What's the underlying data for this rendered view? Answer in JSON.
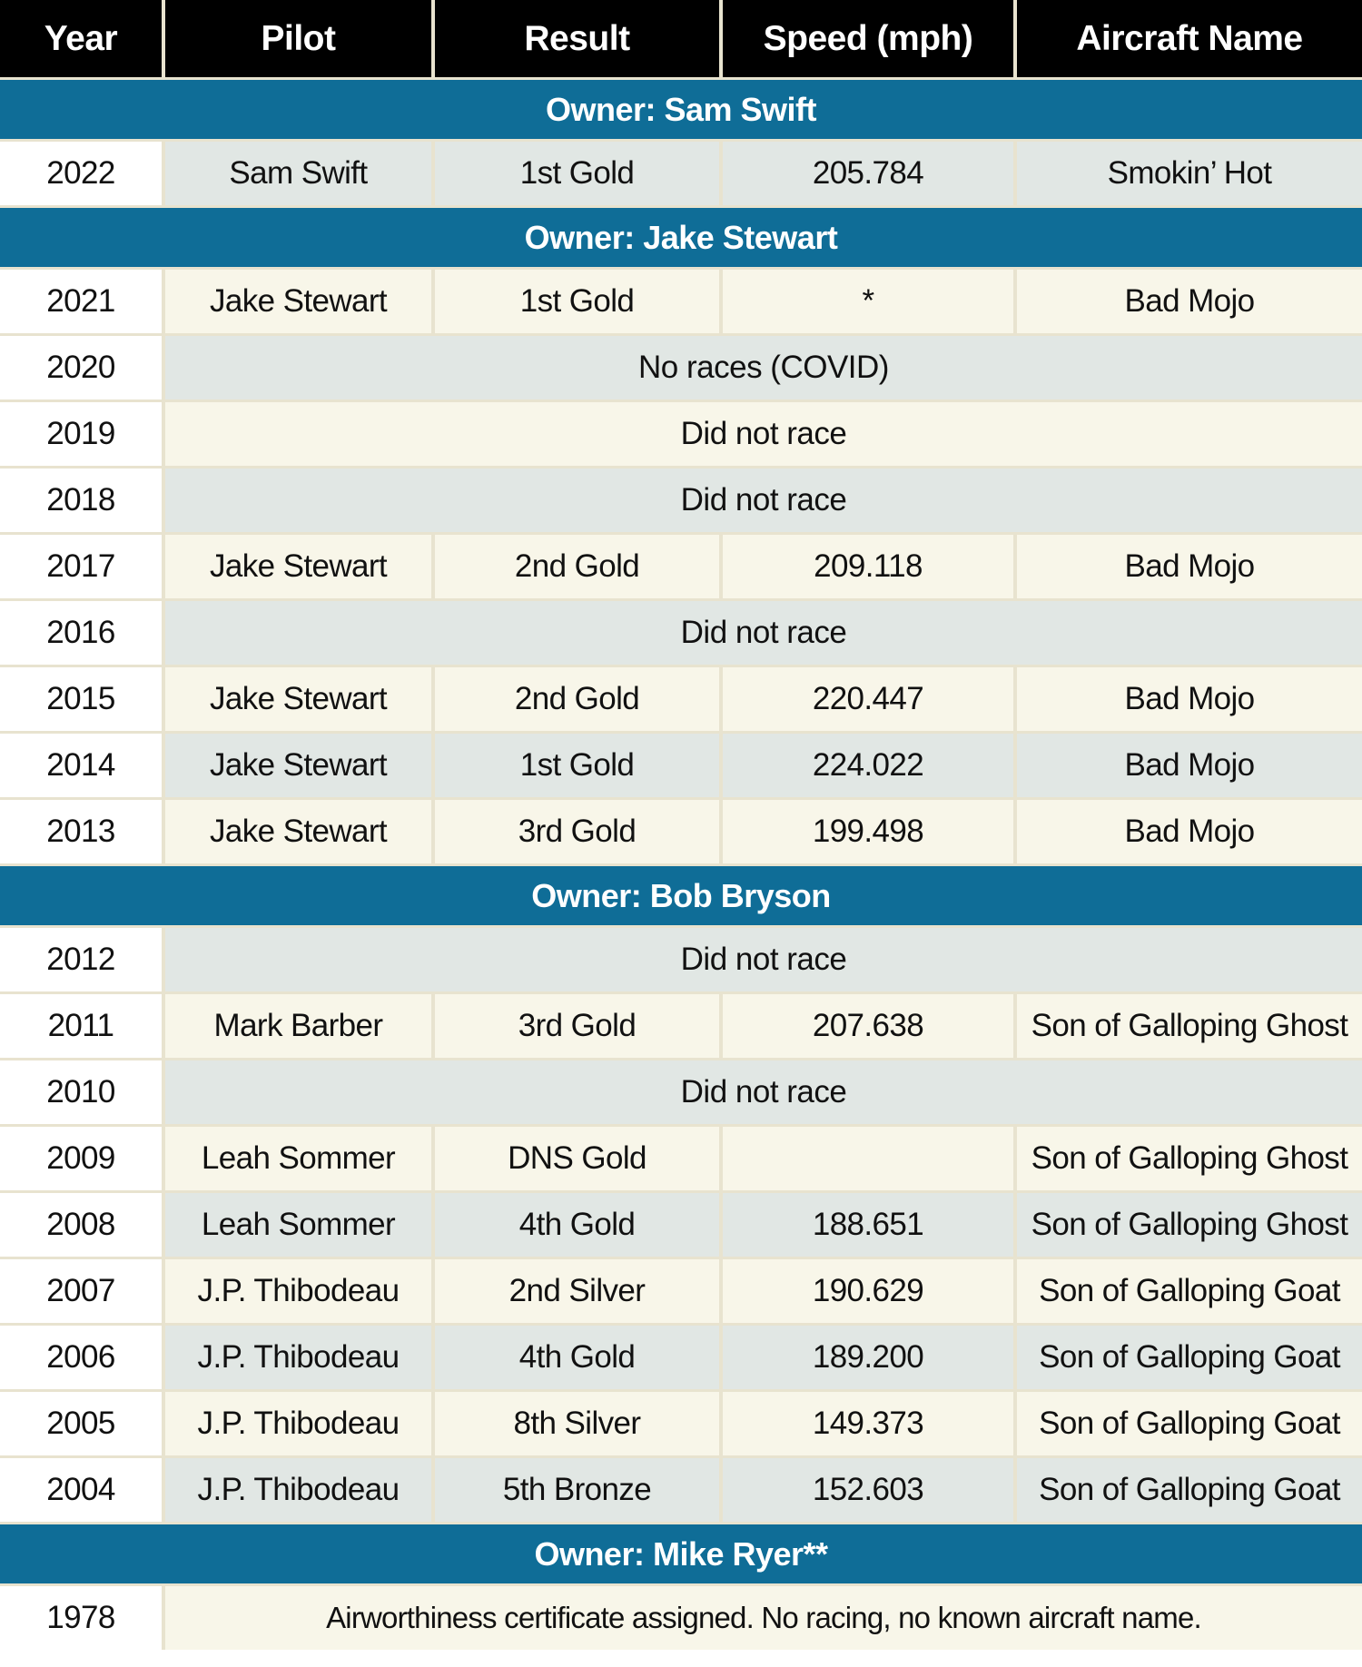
{
  "headers": {
    "year": "Year",
    "pilot": "Pilot",
    "result": "Result",
    "speed": "Speed (mph)",
    "aircraft": "Aircraft Name"
  },
  "owners": [
    {
      "label": "Owner: Sam Swift",
      "rows": [
        {
          "year": "2022",
          "pilot": "Sam Swift",
          "result": "1st Gold",
          "speed": "205.784",
          "aircraft": "Smokin’ Hot"
        }
      ]
    },
    {
      "label": "Owner: Jake Stewart",
      "rows": [
        {
          "year": "2021",
          "pilot": "Jake Stewart",
          "result": "1st Gold",
          "speed": "*",
          "aircraft": "Bad Mojo"
        },
        {
          "year": "2020",
          "note": "No races (COVID)"
        },
        {
          "year": "2019",
          "note": "Did not race"
        },
        {
          "year": "2018",
          "note": "Did not race"
        },
        {
          "year": "2017",
          "pilot": "Jake Stewart",
          "result": "2nd Gold",
          "speed": "209.118",
          "aircraft": "Bad Mojo"
        },
        {
          "year": "2016",
          "note": "Did not race"
        },
        {
          "year": "2015",
          "pilot": "Jake Stewart",
          "result": "2nd Gold",
          "speed": "220.447",
          "aircraft": "Bad Mojo"
        },
        {
          "year": "2014",
          "pilot": "Jake Stewart",
          "result": "1st Gold",
          "speed": "224.022",
          "aircraft": "Bad Mojo"
        },
        {
          "year": "2013",
          "pilot": "Jake Stewart",
          "result": "3rd Gold",
          "speed": "199.498",
          "aircraft": "Bad Mojo"
        }
      ]
    },
    {
      "label": "Owner: Bob Bryson",
      "rows": [
        {
          "year": "2012",
          "note": "Did not race"
        },
        {
          "year": "2011",
          "pilot": "Mark Barber",
          "result": "3rd Gold",
          "speed": "207.638",
          "aircraft": "Son of Galloping Ghost"
        },
        {
          "year": "2010",
          "note": "Did not race"
        },
        {
          "year": "2009",
          "pilot": "Leah Sommer",
          "result": "DNS Gold",
          "speed": "",
          "aircraft": "Son of Galloping Ghost"
        },
        {
          "year": "2008",
          "pilot": "Leah Sommer",
          "result": "4th Gold",
          "speed": "188.651",
          "aircraft": "Son of Galloping Ghost"
        },
        {
          "year": "2007",
          "pilot": "J.P. Thibodeau",
          "result": "2nd Silver",
          "speed": "190.629",
          "aircraft": "Son of Galloping Goat"
        },
        {
          "year": "2006",
          "pilot": "J.P. Thibodeau",
          "result": "4th Gold",
          "speed": "189.200",
          "aircraft": "Son of Galloping Goat"
        },
        {
          "year": "2005",
          "pilot": "J.P. Thibodeau",
          "result": "8th Silver",
          "speed": "149.373",
          "aircraft": "Son of Galloping Goat"
        },
        {
          "year": "2004",
          "pilot": "J.P. Thibodeau",
          "result": "5th Bronze",
          "speed": "152.603",
          "aircraft": "Son of Galloping Goat"
        }
      ]
    },
    {
      "label": "Owner: Mike Ryer**",
      "rows": [
        {
          "year": "1978",
          "note": "Airworthiness certificate assigned. No racing, no known aircraft name."
        }
      ]
    }
  ],
  "colors": {
    "header_bg": "#000000",
    "owner_bg": "#0f6d97",
    "row_shade_a": "#e1e7e4",
    "row_shade_b": "#f8f6e9",
    "grid": "#e8e3cf"
  }
}
